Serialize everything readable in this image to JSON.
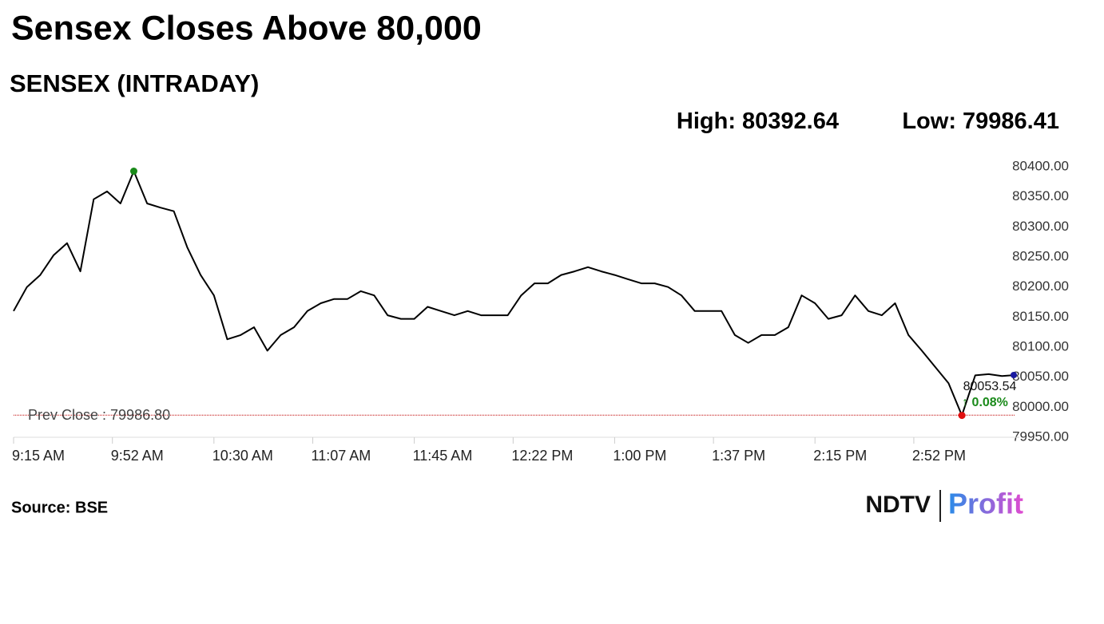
{
  "title": "Sensex Closes Above 80,000",
  "subtitle": "SENSEX (INTRADAY)",
  "stats": [
    {
      "label": "High:",
      "value": 80392.64
    },
    {
      "label": "Low:",
      "value": 79986.41
    }
  ],
  "source": "Source: BSE",
  "logo": [
    "NDTV",
    "Profit"
  ],
  "chart_data": {
    "type": "line",
    "color": "#000000",
    "x": [
      "9:15 AM",
      "9:20 AM",
      "9:25 AM",
      "9:30 AM",
      "9:35 AM",
      "9:40 AM",
      "9:45 AM",
      "9:50 AM",
      "9:55 AM",
      "10:00 AM",
      "10:05 AM",
      "10:10 AM",
      "10:15 AM",
      "10:20 AM",
      "10:25 AM",
      "10:30 AM",
      "10:35 AM",
      "10:40 AM",
      "10:45 AM",
      "10:50 AM",
      "10:55 AM",
      "11:00 AM",
      "11:05 AM",
      "11:10 AM",
      "11:15 AM",
      "11:20 AM",
      "11:25 AM",
      "11:30 AM",
      "11:35 AM",
      "11:40 AM",
      "11:45 AM",
      "11:50 AM",
      "11:55 AM",
      "12:00 PM",
      "12:05 PM",
      "12:10 PM",
      "12:15 PM",
      "12:20 PM",
      "12:25 PM",
      "12:30 PM",
      "12:35 PM",
      "12:40 PM",
      "12:45 PM",
      "12:50 PM",
      "12:55 PM",
      "1:00 PM",
      "1:05 PM",
      "1:10 PM",
      "1:15 PM",
      "1:20 PM",
      "1:25 PM",
      "1:30 PM",
      "1:35 PM",
      "1:40 PM",
      "1:45 PM",
      "1:50 PM",
      "1:55 PM",
      "2:00 PM",
      "2:05 PM",
      "2:10 PM",
      "2:15 PM",
      "2:20 PM",
      "2:25 PM",
      "2:30 PM",
      "2:35 PM",
      "2:40 PM",
      "2:45 PM",
      "2:50 PM",
      "2:55 PM",
      "3:00 PM",
      "3:05 PM",
      "3:10 PM",
      "3:15 PM",
      "3:20 PM",
      "3:25 PM",
      "3:30 PM"
    ],
    "values": [
      80160,
      80200,
      80220,
      80253,
      80273,
      80226,
      80346,
      80359,
      80339,
      80392.64,
      80339,
      80332,
      80326,
      80266,
      80220,
      80186,
      80113,
      80120,
      80133,
      80094,
      80120,
      80133,
      80160,
      80173,
      80180,
      80180,
      80193,
      80186,
      80153,
      80147,
      80147,
      80167,
      80160,
      80153,
      80160,
      80153,
      80153,
      80153,
      80186,
      80206,
      80206,
      80220,
      80226,
      80233,
      80226,
      80220,
      80213,
      80206,
      80206,
      80200,
      80186,
      80160,
      80160,
      80160,
      80120,
      80107,
      80120,
      80120,
      80133,
      80186,
      80173,
      80147,
      80153,
      80186,
      80160,
      80153,
      80173,
      80120,
      80094,
      80067,
      80040,
      79986.41,
      80053,
      80055,
      80052,
      80053.54
    ],
    "ylim": [
      79950,
      80400
    ],
    "yticks": [
      {
        "value": 79950,
        "label": "79950.00"
      },
      {
        "value": 80000,
        "label": "80000.00"
      },
      {
        "value": 80050,
        "label": "80050.00"
      },
      {
        "value": 80100,
        "label": "80100.00"
      },
      {
        "value": 80150,
        "label": "80150.00"
      },
      {
        "value": 80200,
        "label": "80200.00"
      },
      {
        "value": 80250,
        "label": "80250.00"
      },
      {
        "value": 80300,
        "label": "80300.00"
      },
      {
        "value": 80350,
        "label": "80350.00"
      },
      {
        "value": 80400,
        "label": "80400.00"
      }
    ],
    "xticks": [
      "9:15 AM",
      "9:52 AM",
      "10:30 AM",
      "11:07 AM",
      "11:45 AM",
      "12:22 PM",
      "1:00 PM",
      "1:37 PM",
      "2:15 PM",
      "2:52 PM"
    ],
    "prev_close": {
      "label": "Prev Close : 79986.80",
      "value": 79986.8,
      "color": "#c00000"
    },
    "annotations": [
      "80053.54",
      "↑ 0.08%"
    ]
  }
}
